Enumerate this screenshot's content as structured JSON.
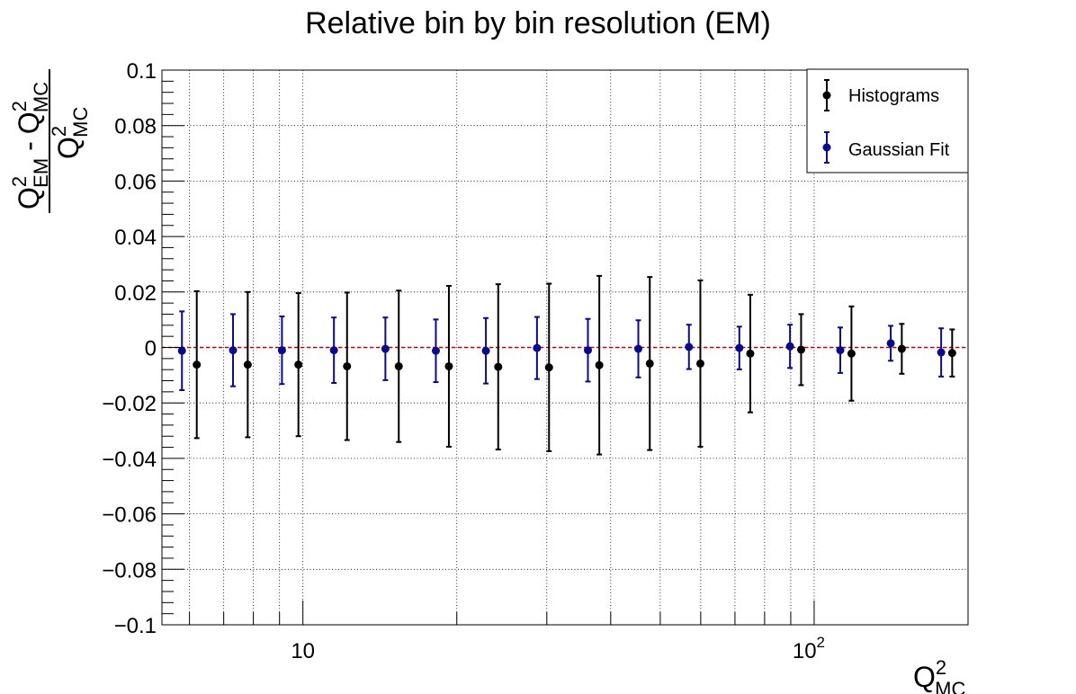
{
  "chart_data": {
    "type": "scatter",
    "title": "Relative bin by bin resolution (EM)",
    "xlabel": {
      "main": "Q",
      "sup": "2",
      "sub": "MC"
    },
    "ylabel": {
      "num_a": "Q",
      "num_a_sup": "2",
      "num_a_sub": "EM",
      "minus": "-",
      "num_b": "Q",
      "num_b_sup": "2",
      "num_b_sub": "MC",
      "den": "Q",
      "den_sup": "2",
      "den_sub": "MC"
    },
    "x_scale": "log",
    "xlim": [
      5.3,
      200
    ],
    "ylim": [
      -0.1,
      0.1
    ],
    "y_ticks": [
      "0.1",
      "0.08",
      "0.06",
      "0.04",
      "0.02",
      "0",
      "−0.02",
      "−0.04",
      "−0.06",
      "−0.08",
      "−0.1"
    ],
    "x_ticks": [
      {
        "base": "10",
        "exp": ""
      },
      {
        "base": "10",
        "exp": "2"
      }
    ],
    "grid": true,
    "legend_position": "top-right",
    "reference_line": {
      "y": 0,
      "color": "#cc0000",
      "style": "dashed"
    },
    "series": [
      {
        "name": "Histograms",
        "color": "#000000",
        "x": [
          6.2,
          7.8,
          9.8,
          12.2,
          15.4,
          19.3,
          24.1,
          30.3,
          38.0,
          47.7,
          59.9,
          75.0,
          94.3,
          118.3,
          148.4,
          186.2
        ],
        "y": [
          -0.0062,
          -0.0062,
          -0.0062,
          -0.0068,
          -0.0068,
          -0.0068,
          -0.007,
          -0.0072,
          -0.0064,
          -0.0058,
          -0.0058,
          -0.0022,
          -0.0008,
          -0.0022,
          -0.0005,
          -0.002
        ],
        "err": [
          0.0265,
          0.0262,
          0.0258,
          0.0266,
          0.0273,
          0.029,
          0.0298,
          0.0302,
          0.0322,
          0.0312,
          0.03,
          0.0212,
          0.0128,
          0.017,
          0.009,
          0.0085
        ]
      },
      {
        "name": "Gaussian Fit",
        "color": "#0a0a8c",
        "x": [
          5.8,
          7.3,
          9.1,
          11.5,
          14.5,
          18.2,
          22.8,
          28.7,
          36.1,
          45.3,
          56.9,
          71.4,
          89.7,
          112.5,
          141.2,
          177.2
        ],
        "y": [
          -0.0012,
          -0.001,
          -0.001,
          -0.001,
          -0.0005,
          -0.0012,
          -0.0012,
          -0.0002,
          -0.001,
          -0.0005,
          0.0002,
          -0.0002,
          0.0004,
          -0.001,
          0.0015,
          -0.0018
        ],
        "err": [
          0.0142,
          0.013,
          0.0122,
          0.0118,
          0.0113,
          0.0113,
          0.0118,
          0.0112,
          0.0113,
          0.0103,
          0.008,
          0.0077,
          0.0078,
          0.0082,
          0.0063,
          0.0087
        ]
      }
    ]
  }
}
